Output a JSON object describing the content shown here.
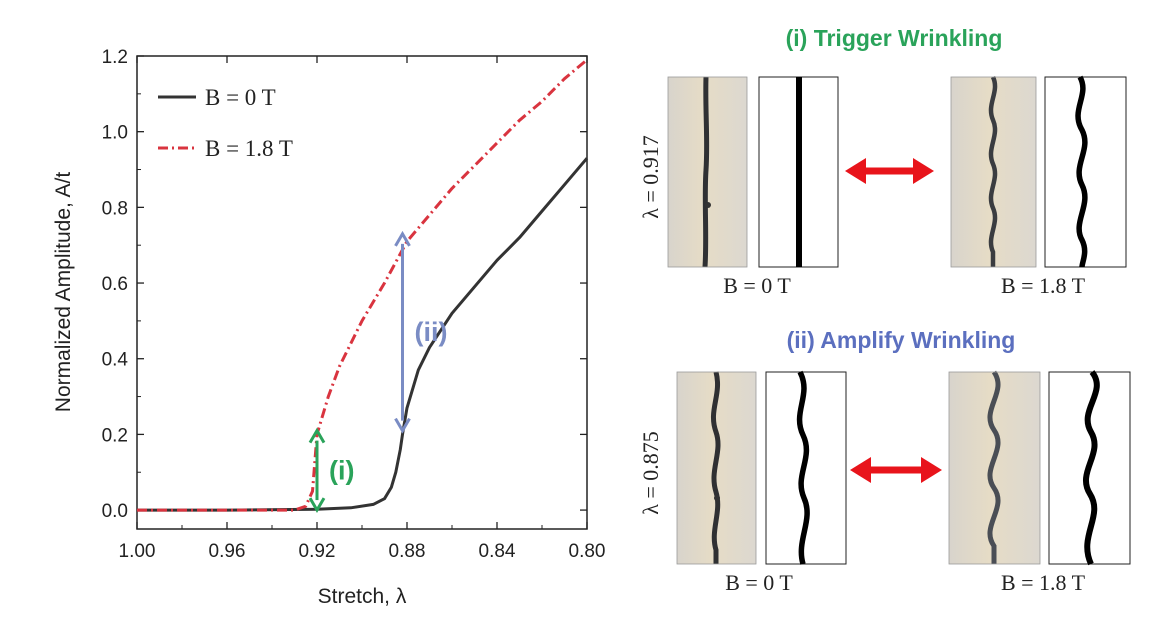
{
  "chart_data": {
    "type": "line",
    "xlabel": "Stretch, λ",
    "ylabel": "Normalized Amplitude, A/t",
    "xlim": [
      1.0,
      0.8
    ],
    "ylim": [
      -0.05,
      1.2
    ],
    "x_reversed": true,
    "x_ticks": [
      "1.00",
      "0.96",
      "0.92",
      "0.88",
      "0.84",
      "0.80"
    ],
    "x_tick_values": [
      1.0,
      0.96,
      0.92,
      0.88,
      0.84,
      0.8
    ],
    "y_ticks": [
      "0.0",
      "0.2",
      "0.4",
      "0.6",
      "0.8",
      "1.0",
      "1.2"
    ],
    "y_tick_values": [
      0.0,
      0.2,
      0.4,
      0.6,
      0.8,
      1.0,
      1.2
    ],
    "legend_position": "top-left",
    "series": [
      {
        "name": "B = 0 T",
        "color": "#333333",
        "style": "solid",
        "x": [
          1.0,
          0.96,
          0.92,
          0.905,
          0.895,
          0.89,
          0.887,
          0.885,
          0.883,
          0.882,
          0.88,
          0.875,
          0.87,
          0.86,
          0.85,
          0.84,
          0.83,
          0.82,
          0.81,
          0.8
        ],
        "y": [
          0.0,
          0.0,
          0.002,
          0.006,
          0.015,
          0.03,
          0.06,
          0.1,
          0.16,
          0.2,
          0.27,
          0.37,
          0.43,
          0.52,
          0.59,
          0.66,
          0.72,
          0.79,
          0.86,
          0.93
        ]
      },
      {
        "name": "B = 1.8 T",
        "color": "#d9343f",
        "style": "dash-dot",
        "x": [
          1.0,
          0.96,
          0.93,
          0.925,
          0.922,
          0.92,
          0.915,
          0.91,
          0.9,
          0.89,
          0.88,
          0.87,
          0.86,
          0.85,
          0.84,
          0.83,
          0.82,
          0.81,
          0.8
        ],
        "y": [
          0.0,
          0.0,
          0.0,
          0.01,
          0.05,
          0.2,
          0.3,
          0.38,
          0.5,
          0.6,
          0.71,
          0.78,
          0.85,
          0.91,
          0.97,
          1.03,
          1.08,
          1.14,
          1.19
        ]
      }
    ],
    "annotations": [
      {
        "label": "(i)",
        "color": "#2aa35a",
        "x": 0.92,
        "y_from": 0.0,
        "y_to": 0.21
      },
      {
        "label": "(ii)",
        "color": "#7a8cc4",
        "x": 0.882,
        "y_from": 0.21,
        "y_to": 0.73
      }
    ]
  },
  "panels": {
    "top": {
      "title": "(i) Trigger Wrinkling",
      "title_color": "#2aa35a",
      "lambda_label": "λ = 0.917",
      "left_caption": "B = 0 T",
      "right_caption": "B = 1.8 T"
    },
    "bottom": {
      "title": "(ii) Amplify Wrinkling",
      "title_color": "#5b6fbf",
      "lambda_label": "λ = 0.875",
      "left_caption": "B = 0 T",
      "right_caption": "B = 1.8 T"
    },
    "arrow_color": "#e8141b"
  }
}
